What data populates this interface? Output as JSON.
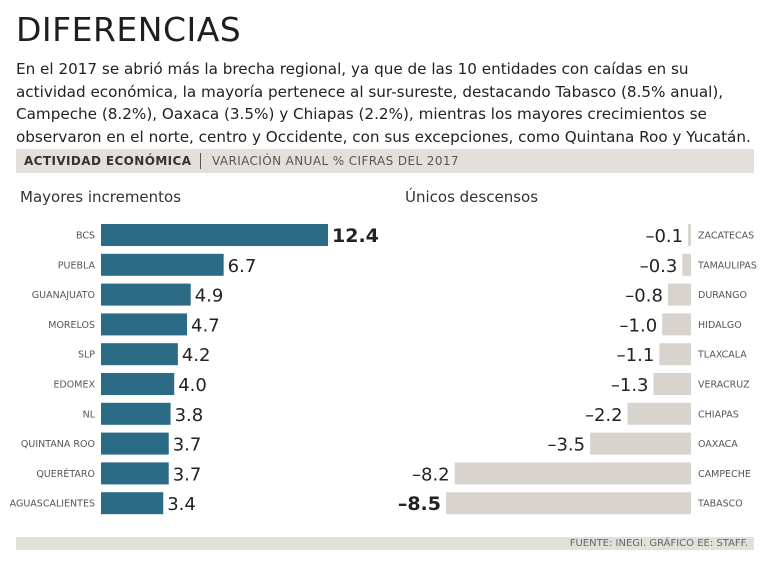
{
  "header": {
    "title": "DIFERENCIAS",
    "subtitle": "En el 2017 se abrió más la brecha regional, ya que de las 10 entidades con caídas en su actividad económica, la mayoría pertenece  al sur-sureste, destacando Tabasco (8.5% anual), Campeche (8.2%), Oaxaca (3.5%) y Chiapas (2.2%), mientras los mayores crecimientos se observaron en el norte, centro y Occidente, con sus excepciones, como Quintana Roo y Yucatán."
  },
  "band": {
    "label": "ACTIVIDAD ECONÓMICA",
    "sublabel": "VARIACIÓN ANUAL % CIFRAS DEL 2017"
  },
  "colors": {
    "positive": "#2c6b85",
    "negative": "#d8d3cd",
    "band": "#e3e0dc"
  },
  "chart_data": [
    {
      "type": "bar",
      "orientation": "horizontal",
      "title": "Mayores incrementos",
      "categories": [
        "BCS",
        "PUEBLA",
        "GUANAJUATO",
        "MORELOS",
        "SLP",
        "EDOMEX",
        "NL",
        "QUINTANA ROO",
        "QUERÉTARO",
        "AGUASCALIENTES"
      ],
      "values": [
        12.4,
        6.7,
        4.9,
        4.7,
        4.2,
        4.0,
        3.8,
        3.7,
        3.7,
        3.4
      ],
      "labels": [
        "12.4",
        "6.7",
        "4.9",
        "4.7",
        "4.2",
        "4.0",
        "3.8",
        "3.7",
        "3.7",
        "3.4"
      ],
      "xlim": [
        0,
        12.4
      ]
    },
    {
      "type": "bar",
      "orientation": "horizontal",
      "title": "Únicos descensos",
      "categories": [
        "ZACATECAS",
        "TAMAULIPAS",
        "DURANGO",
        "HIDALGO",
        "TLAXCALA",
        "VERACRUZ",
        "CHIAPAS",
        "OAXACA",
        "CAMPECHE",
        "TABASCO"
      ],
      "values": [
        -0.1,
        -0.3,
        -0.8,
        -1.0,
        -1.1,
        -1.3,
        -2.2,
        -3.5,
        -8.2,
        -8.5
      ],
      "labels": [
        "–0.1",
        "–0.3",
        "–0.8",
        "–1.0",
        "–1.1",
        "–1.3",
        "–2.2",
        "–3.5",
        "–8.2",
        "–8.5"
      ],
      "xlim": [
        -8.5,
        0
      ]
    }
  ],
  "footer": {
    "source": "FUENTE: INEGI.  GRÁFICO EE: STAFF."
  }
}
